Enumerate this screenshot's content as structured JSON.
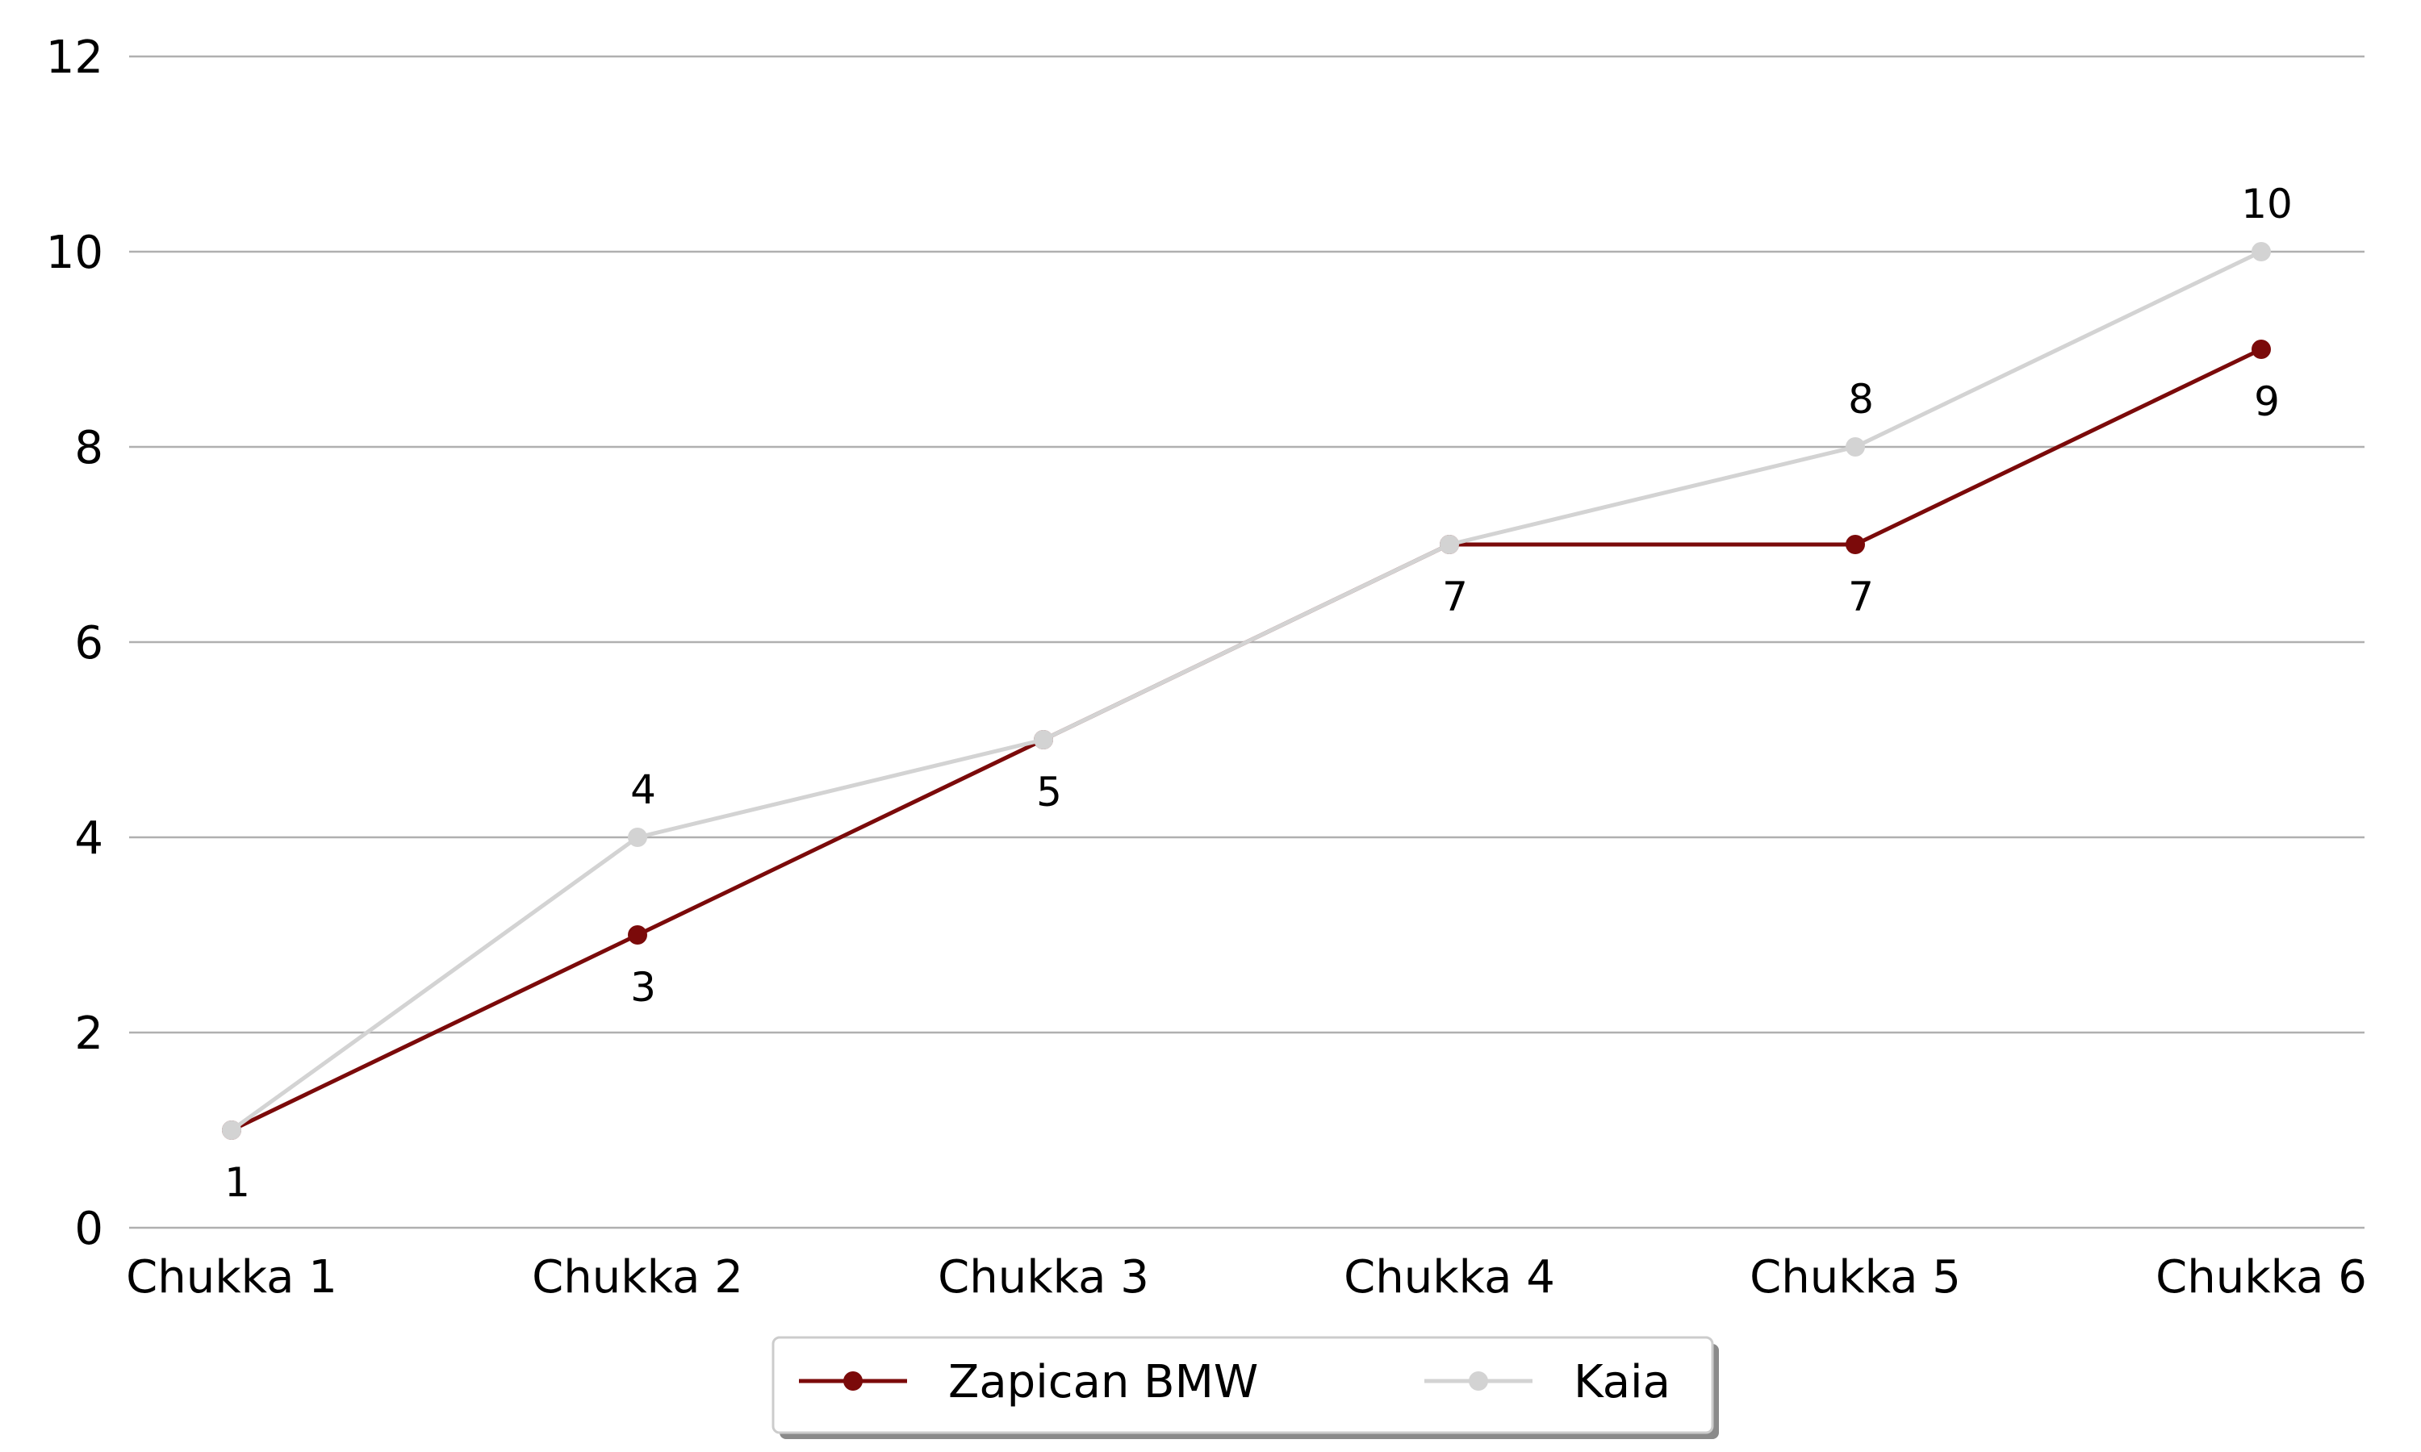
{
  "chart_data": {
    "type": "line",
    "categories": [
      "Chukka 1",
      "Chukka 2",
      "Chukka 3",
      "Chukka 4",
      "Chukka 5",
      "Chukka 6"
    ],
    "series": [
      {
        "name": "Zapican BMW",
        "values": [
          1,
          3,
          5,
          7,
          7,
          9
        ],
        "color": "#7b0a0a",
        "label_position": "below"
      },
      {
        "name": "Kaia",
        "values": [
          1,
          4,
          5,
          7,
          8,
          10
        ],
        "color": "#d3d3d3",
        "label_position": "above"
      }
    ],
    "yticks": [
      "0",
      "2",
      "4",
      "6",
      "8",
      "10",
      "12"
    ],
    "ylim": [
      0,
      12
    ],
    "grid": "horizontal",
    "legend": "bottom-center",
    "title": "",
    "xlabel": "",
    "ylabel": ""
  }
}
